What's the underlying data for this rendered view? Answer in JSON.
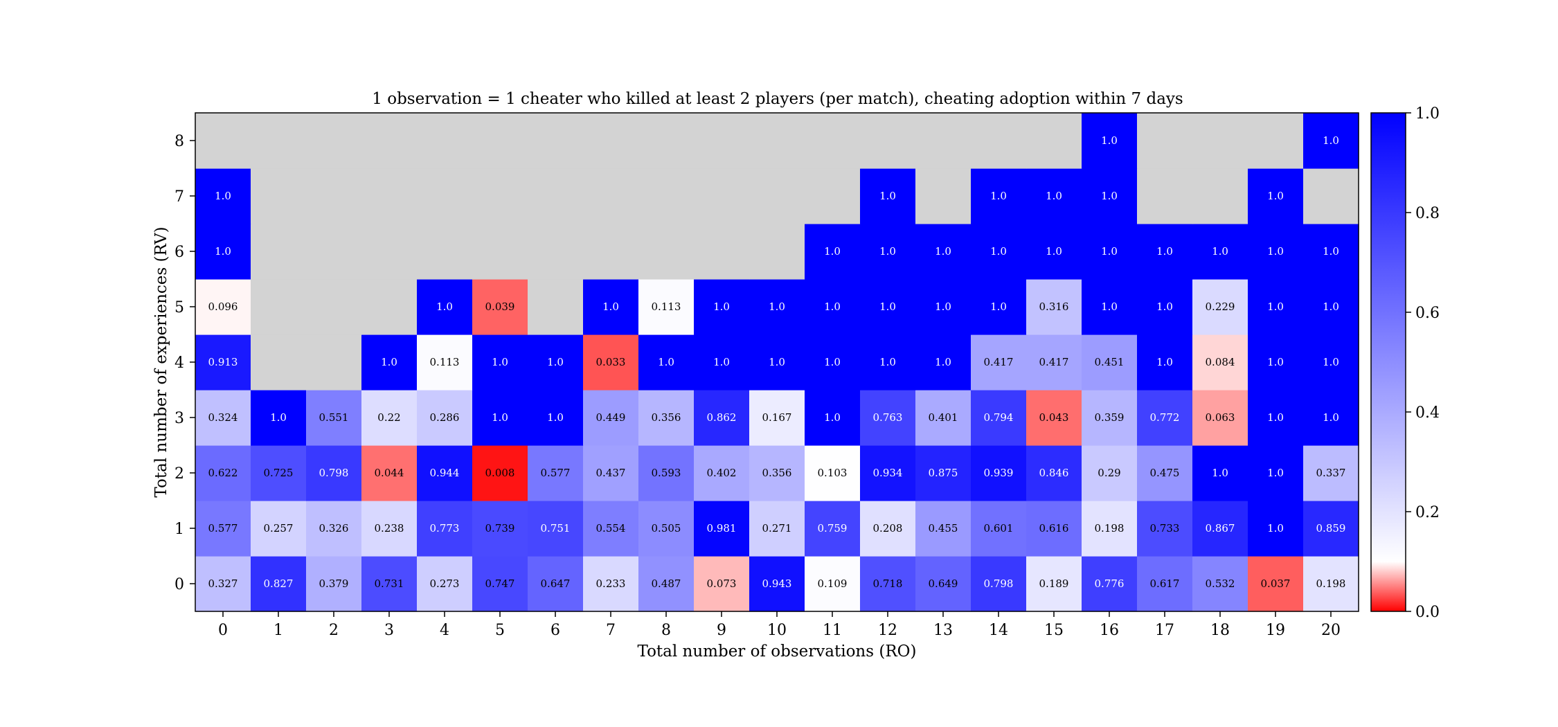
{
  "chart_data": {
    "type": "heatmap",
    "title": "1 observation = 1 cheater who killed at least 2 players (per match), cheating adoption within 7 days",
    "xlabel": "Total number of observations (RO)",
    "ylabel": "Total number of experiences (RV)",
    "x_categories": [
      "0",
      "1",
      "2",
      "3",
      "4",
      "5",
      "6",
      "7",
      "8",
      "9",
      "10",
      "11",
      "12",
      "13",
      "14",
      "15",
      "16",
      "17",
      "18",
      "19",
      "20"
    ],
    "y_categories": [
      "0",
      "1",
      "2",
      "3",
      "4",
      "5",
      "6",
      "7",
      "8"
    ],
    "cells": [
      [
        "0.327",
        "0.827",
        "0.379",
        "0.731",
        "0.273",
        "0.747",
        "0.647",
        "0.233",
        "0.487",
        "0.073",
        "0.943",
        "0.109",
        "0.718",
        "0.649",
        "0.798",
        "0.189",
        "0.776",
        "0.617",
        "0.532",
        "0.037",
        "0.198"
      ],
      [
        "0.577",
        "0.257",
        "0.326",
        "0.238",
        "0.773",
        "0.739",
        "0.751",
        "0.554",
        "0.505",
        "0.981",
        "0.271",
        "0.759",
        "0.208",
        "0.455",
        "0.601",
        "0.616",
        "0.198",
        "0.733",
        "0.867",
        "1.0",
        "0.859"
      ],
      [
        "0.622",
        "0.725",
        "0.798",
        "0.044",
        "0.944",
        "0.008",
        "0.577",
        "0.437",
        "0.593",
        "0.402",
        "0.356",
        "0.103",
        "0.934",
        "0.875",
        "0.939",
        "0.846",
        "0.29",
        "0.475",
        "1.0",
        "1.0",
        "0.337"
      ],
      [
        "0.324",
        "1.0",
        "0.551",
        "0.22",
        "0.286",
        "1.0",
        "1.0",
        "0.449",
        "0.356",
        "0.862",
        "0.167",
        "1.0",
        "0.763",
        "0.401",
        "0.794",
        "0.043",
        "0.359",
        "0.772",
        "0.063",
        "1.0",
        "1.0"
      ],
      [
        "0.913",
        null,
        null,
        "1.0",
        "0.113",
        "1.0",
        "1.0",
        "0.033",
        "1.0",
        "1.0",
        "1.0",
        "1.0",
        "1.0",
        "1.0",
        "0.417",
        "0.417",
        "0.451",
        "1.0",
        "0.084",
        "1.0",
        "1.0"
      ],
      [
        "0.096",
        null,
        null,
        null,
        "1.0",
        "0.039",
        null,
        "1.0",
        "0.113",
        "1.0",
        "1.0",
        "1.0",
        "1.0",
        "1.0",
        "1.0",
        "0.316",
        "1.0",
        "1.0",
        "0.229",
        "1.0",
        "1.0"
      ],
      [
        "1.0",
        null,
        null,
        null,
        null,
        null,
        null,
        null,
        null,
        null,
        null,
        "1.0",
        "1.0",
        "1.0",
        "1.0",
        "1.0",
        "1.0",
        "1.0",
        "1.0",
        "1.0",
        "1.0"
      ],
      [
        "1.0",
        null,
        null,
        null,
        null,
        null,
        null,
        null,
        null,
        null,
        null,
        null,
        "1.0",
        null,
        "1.0",
        "1.0",
        "1.0",
        null,
        null,
        "1.0",
        null
      ],
      [
        null,
        null,
        null,
        null,
        null,
        null,
        null,
        null,
        null,
        null,
        null,
        null,
        null,
        null,
        null,
        null,
        "1.0",
        null,
        null,
        null,
        "1.0"
      ]
    ],
    "colorbar": {
      "range": [
        0.0,
        1.0
      ],
      "ticks": [
        "0.0",
        "0.2",
        "0.4",
        "0.6",
        "0.8",
        "1.0"
      ]
    },
    "colors": {
      "missing": "#d3d3d3",
      "low": "#ff0000",
      "mid": "#ffffff",
      "high": "#0000ff"
    }
  }
}
